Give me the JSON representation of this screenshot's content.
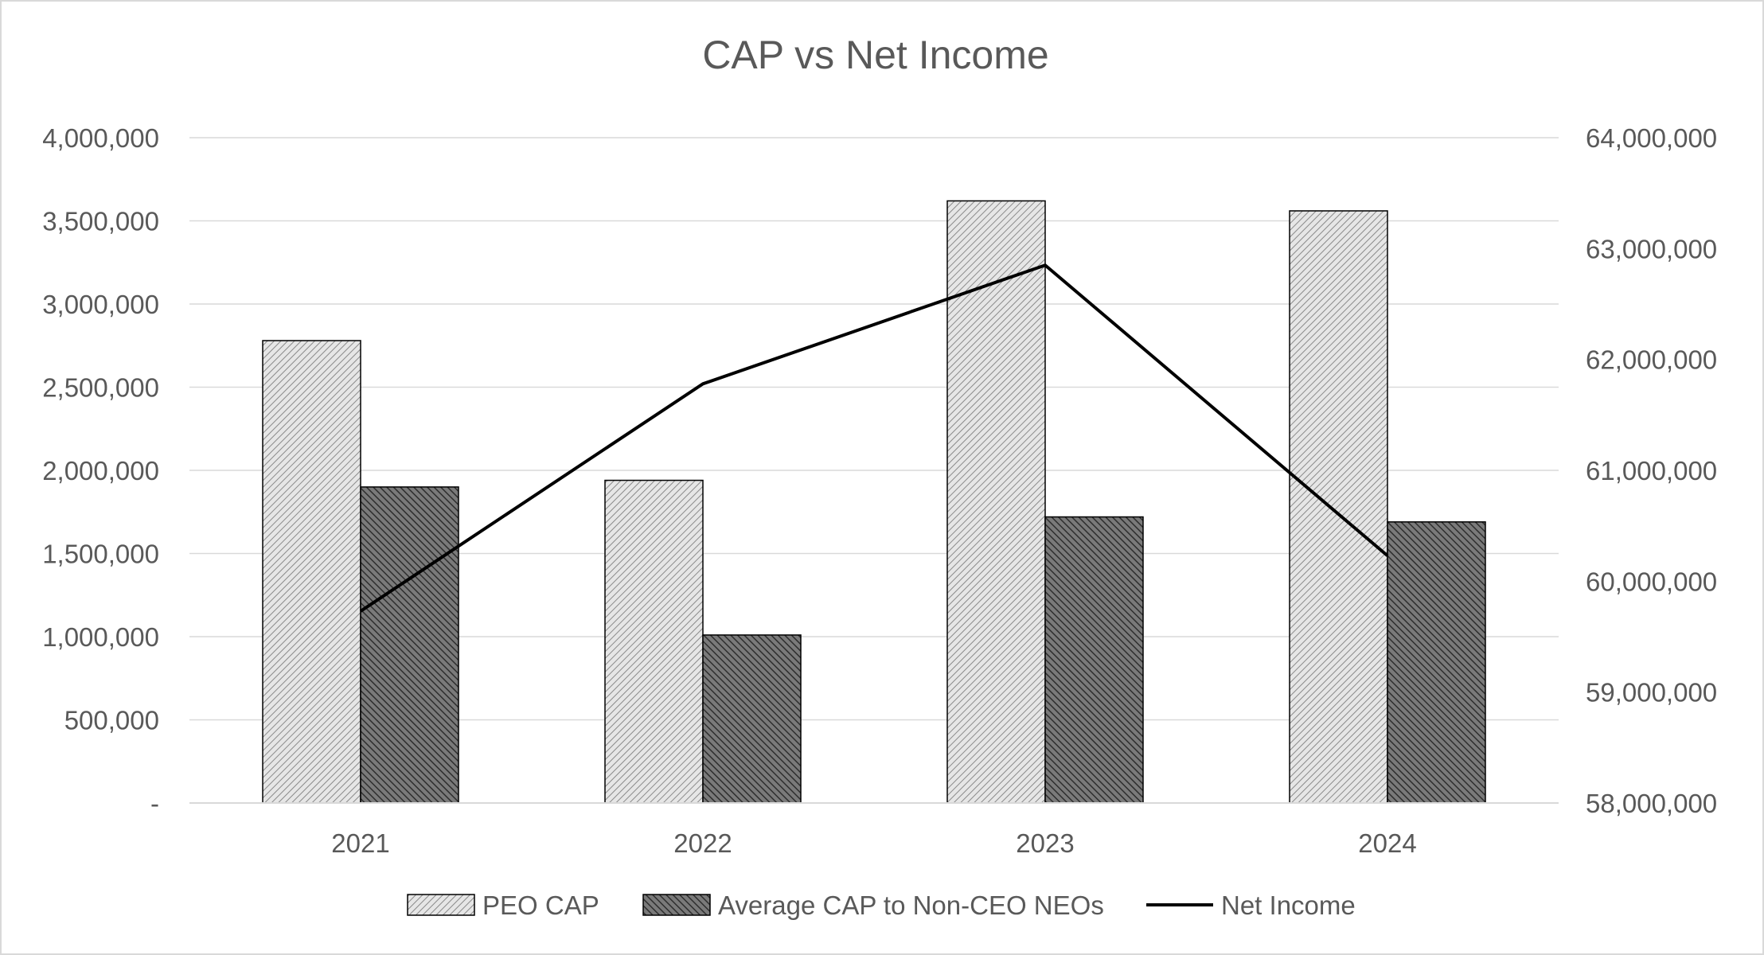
{
  "chart_data": {
    "type": "bar",
    "title": "CAP vs Net Income",
    "categories": [
      "2021",
      "2022",
      "2023",
      "2024"
    ],
    "series": [
      {
        "name": "PEO CAP",
        "type": "bar",
        "axis": "left",
        "pattern": "light-diagonal",
        "values": [
          2780000,
          1940000,
          3620000,
          3560000
        ]
      },
      {
        "name": "Average CAP to Non-CEO NEOs",
        "type": "bar",
        "axis": "left",
        "pattern": "dark-diagonal",
        "values": [
          1900000,
          1010000,
          1720000,
          1690000
        ]
      },
      {
        "name": "Net Income",
        "type": "line",
        "axis": "right",
        "color": "#000000",
        "values": [
          59730000,
          61780000,
          62850000,
          60230000
        ]
      }
    ],
    "y_left": {
      "min": 0,
      "max": 4000000,
      "step": 500000,
      "tick_labels": [
        "-",
        "500,000",
        "1,000,000",
        "1,500,000",
        "2,000,000",
        "2,500,000",
        "3,000,000",
        "3,500,000",
        "4,000,000"
      ]
    },
    "y_right": {
      "min": 58000000,
      "max": 64000000,
      "step": 1000000,
      "tick_labels": [
        "58,000,000",
        "59,000,000",
        "60,000,000",
        "61,000,000",
        "62,000,000",
        "63,000,000",
        "64,000,000"
      ]
    },
    "grid": true,
    "legend_position": "bottom"
  },
  "colors": {
    "text": "#595959",
    "grid": "#d9d9d9",
    "bar_stroke": "#000000",
    "line": "#000000"
  }
}
